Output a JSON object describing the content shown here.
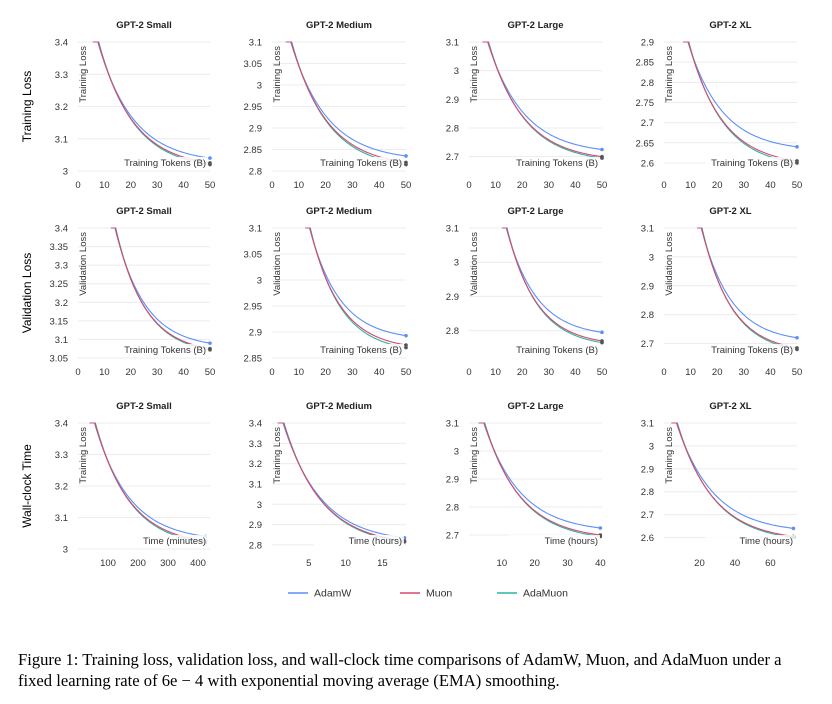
{
  "row_labels": [
    "Training Loss",
    "Validation Loss",
    "Wall-clock Time"
  ],
  "legend": [
    {
      "name": "AdamW",
      "color": "#5b8ff9"
    },
    {
      "name": "Muon",
      "color": "#d9486e"
    },
    {
      "name": "AdaMuon",
      "color": "#2bb3a3"
    }
  ],
  "caption": "Figure 1: Training loss, validation loss, and wall-clock time comparisons of AdamW, Muon, and AdaMuon under a fixed learning rate of 6e − 4 with exponential moving average (EMA) smoothing.",
  "chart_data": [
    {
      "type": "line",
      "title": "GPT-2 Small",
      "xlabel": "Training Tokens (B)",
      "ylabel": "Training Loss",
      "xlim": [
        0,
        50
      ],
      "ylim": [
        3,
        3.4
      ],
      "xticks": [
        0,
        10,
        20,
        30,
        40,
        50
      ],
      "yticks": [
        3,
        3.1,
        3.2,
        3.3,
        3.4
      ],
      "ytick_labels": [
        "3",
        "3.1",
        "3.2",
        "3.3",
        "3.4"
      ],
      "x_start": 7.5,
      "final": [
        3.04,
        3.025,
        3.02
      ]
    },
    {
      "type": "line",
      "title": "GPT-2 Medium",
      "xlabel": "Training Tokens (B)",
      "ylabel": "Training Loss",
      "xlim": [
        0,
        50
      ],
      "ylim": [
        2.8,
        3.1
      ],
      "xticks": [
        0,
        10,
        20,
        30,
        40,
        50
      ],
      "yticks": [
        2.8,
        2.85,
        2.9,
        2.95,
        3,
        3.05,
        3.1
      ],
      "ytick_labels": [
        "2.8",
        "2.85",
        "2.9",
        "2.95",
        "3",
        "3.05",
        "3.1"
      ],
      "x_start": 7,
      "final": [
        2.835,
        2.82,
        2.815
      ]
    },
    {
      "type": "line",
      "title": "GPT-2 Large",
      "xlabel": "Training Tokens (B)",
      "ylabel": "Training Loss",
      "xlim": [
        0,
        50
      ],
      "ylim": [
        2.65,
        3.1
      ],
      "xticks": [
        0,
        10,
        20,
        30,
        40,
        50
      ],
      "yticks": [
        2.7,
        2.8,
        2.9,
        3,
        3.1
      ],
      "ytick_labels": [
        "2.7",
        "2.8",
        "2.9",
        "3",
        "3.1"
      ],
      "x_start": 7,
      "final": [
        2.725,
        2.7,
        2.695
      ]
    },
    {
      "type": "line",
      "title": "GPT-2 XL",
      "xlabel": "Training Tokens (B)",
      "ylabel": "Training Loss",
      "xlim": [
        0,
        50
      ],
      "ylim": [
        2.58,
        2.9
      ],
      "xticks": [
        0,
        10,
        20,
        30,
        40,
        50
      ],
      "yticks": [
        2.6,
        2.65,
        2.7,
        2.75,
        2.8,
        2.85,
        2.9
      ],
      "ytick_labels": [
        "2.6",
        "2.65",
        "2.7",
        "2.75",
        "2.8",
        "2.85",
        "2.9"
      ],
      "x_start": 9,
      "final": [
        2.64,
        2.605,
        2.6
      ]
    },
    {
      "type": "line",
      "title": "GPT-2 Small",
      "xlabel": "Training Tokens (B)",
      "ylabel": "Validation Loss",
      "xlim": [
        0,
        50
      ],
      "ylim": [
        3.05,
        3.4
      ],
      "xticks": [
        0,
        10,
        20,
        30,
        40,
        50
      ],
      "yticks": [
        3.05,
        3.1,
        3.15,
        3.2,
        3.25,
        3.3,
        3.35,
        3.4
      ],
      "ytick_labels": [
        "3.05",
        "3.1",
        "3.15",
        "3.2",
        "3.25",
        "3.3",
        "3.35",
        "3.4"
      ],
      "x_start": 14,
      "final": [
        3.09,
        3.075,
        3.072
      ]
    },
    {
      "type": "line",
      "title": "GPT-2 Medium",
      "xlabel": "Training Tokens (B)",
      "ylabel": "Validation Loss",
      "xlim": [
        0,
        50
      ],
      "ylim": [
        2.85,
        3.1
      ],
      "xticks": [
        0,
        10,
        20,
        30,
        40,
        50
      ],
      "yticks": [
        2.85,
        2.9,
        2.95,
        3,
        3.05,
        3.1
      ],
      "ytick_labels": [
        "2.85",
        "2.9",
        "2.95",
        "3",
        "3.05",
        "3.1"
      ],
      "x_start": 14,
      "final": [
        2.893,
        2.875,
        2.87
      ]
    },
    {
      "type": "line",
      "title": "GPT-2 Large",
      "xlabel": "Training Tokens (B)",
      "ylabel": "Validation Loss",
      "xlim": [
        0,
        50
      ],
      "ylim": [
        2.72,
        3.1
      ],
      "xticks": [
        0,
        10,
        20,
        30,
        40,
        50
      ],
      "yticks": [
        2.8,
        2.9,
        3,
        3.1
      ],
      "ytick_labels": [
        "2.8",
        "2.9",
        "3",
        "3.1"
      ],
      "x_start": 14,
      "final": [
        2.795,
        2.77,
        2.765
      ]
    },
    {
      "type": "line",
      "title": "GPT-2 XL",
      "xlabel": "Training Tokens (B)",
      "ylabel": "Validation Loss",
      "xlim": [
        0,
        50
      ],
      "ylim": [
        2.65,
        3.1
      ],
      "xticks": [
        0,
        10,
        20,
        30,
        40,
        50
      ],
      "yticks": [
        2.7,
        2.8,
        2.9,
        3,
        3.1
      ],
      "ytick_labels": [
        "2.7",
        "2.8",
        "2.9",
        "3",
        "3.1"
      ],
      "x_start": 14,
      "final": [
        2.72,
        2.685,
        2.68
      ]
    },
    {
      "type": "line",
      "title": "GPT-2 Small",
      "xlabel": "Time (minutes)",
      "ylabel": "Training Loss",
      "xlim": [
        0,
        440
      ],
      "ylim": [
        3,
        3.4
      ],
      "xticks": [
        100,
        200,
        300,
        400
      ],
      "yticks": [
        3,
        3.1,
        3.2,
        3.3,
        3.4
      ],
      "ytick_labels": [
        "3",
        "3.1",
        "3.2",
        "3.3",
        "3.4"
      ],
      "x_start": 55,
      "x_end": 425,
      "final": [
        3.04,
        3.025,
        3.02
      ]
    },
    {
      "type": "line",
      "title": "GPT-2 Medium",
      "xlabel": "Time (hours)",
      "ylabel": "Training Loss",
      "xlim": [
        0,
        18.2
      ],
      "ylim": [
        2.78,
        3.4
      ],
      "xticks": [
        5,
        10,
        15
      ],
      "yticks": [
        2.8,
        2.9,
        3,
        3.1,
        3.2,
        3.3,
        3.4
      ],
      "ytick_labels": [
        "2.8",
        "2.9",
        "3",
        "3.1",
        "3.2",
        "3.3",
        "3.4"
      ],
      "x_start": 1.5,
      "x_end": 18,
      "final": [
        2.835,
        2.82,
        2.815
      ]
    },
    {
      "type": "line",
      "title": "GPT-2 Large",
      "xlabel": "Time (hours)",
      "ylabel": "Training Loss",
      "xlim": [
        0,
        40.5
      ],
      "ylim": [
        2.65,
        3.1
      ],
      "xticks": [
        10,
        20,
        30,
        40
      ],
      "yticks": [
        2.7,
        2.8,
        2.9,
        3,
        3.1
      ],
      "ytick_labels": [
        "2.7",
        "2.8",
        "2.9",
        "3",
        "3.1"
      ],
      "x_start": 4.5,
      "x_end": 40,
      "final": [
        2.725,
        2.7,
        2.695
      ]
    },
    {
      "type": "line",
      "title": "GPT-2 XL",
      "xlabel": "Time (hours)",
      "ylabel": "Training Loss",
      "xlim": [
        0,
        75
      ],
      "ylim": [
        2.55,
        3.1
      ],
      "xticks": [
        20,
        40,
        60
      ],
      "yticks": [
        2.6,
        2.7,
        2.8,
        2.9,
        3,
        3.1
      ],
      "ytick_labels": [
        "2.6",
        "2.7",
        "2.8",
        "2.9",
        "3",
        "3.1"
      ],
      "x_start": 7,
      "x_end": 73,
      "final": [
        2.64,
        2.605,
        2.6
      ]
    }
  ]
}
